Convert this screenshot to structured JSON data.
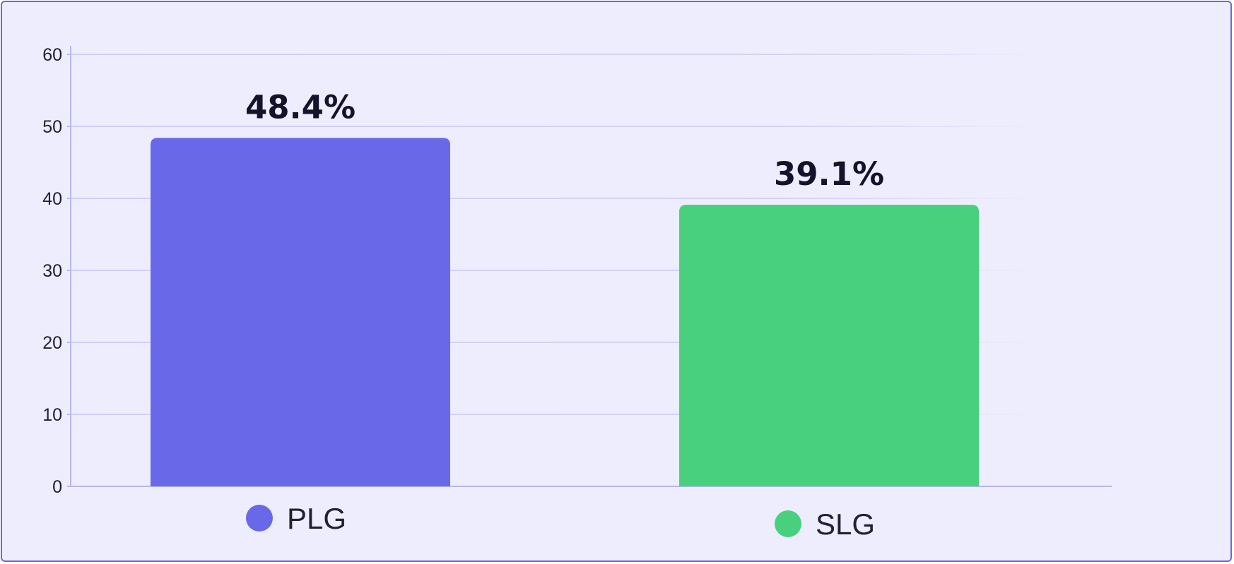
{
  "chart_data": {
    "type": "bar",
    "categories": [
      "PLG",
      "SLG"
    ],
    "values": [
      48.4,
      39.1
    ],
    "value_labels": [
      "48.4%",
      "39.1%"
    ],
    "colors": [
      "#6868e8",
      "#49d07e"
    ],
    "title": "",
    "xlabel": "",
    "ylabel": "",
    "ylim": [
      0,
      60
    ],
    "yticks": [
      0,
      10,
      20,
      30,
      40,
      50,
      60
    ],
    "ytick_labels": [
      "0",
      "10",
      "20",
      "30",
      "40",
      "50",
      "60"
    ],
    "grid": true,
    "legend": "bottom, under each bar"
  },
  "theme": {
    "background": "#eeedfd",
    "border": "#6b6bd6",
    "gridline": "#c6c4f3",
    "axis": "#b9b6ee"
  }
}
